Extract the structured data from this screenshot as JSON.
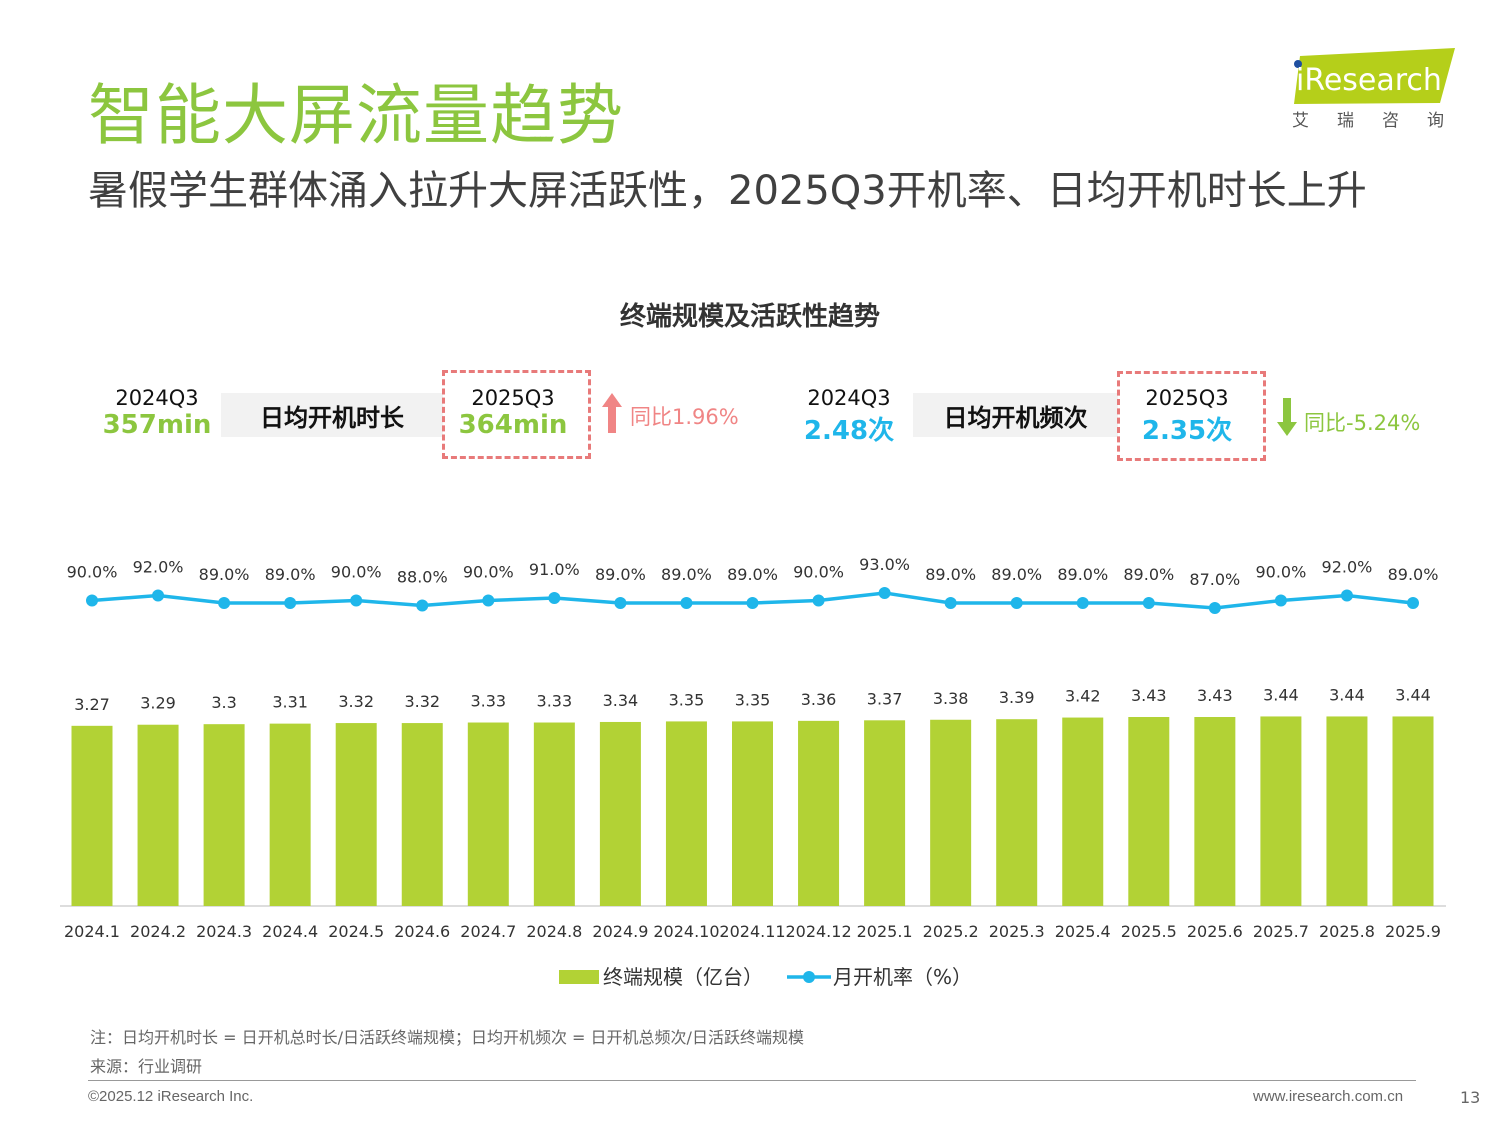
{
  "header": {
    "title": "智能大屏流量趋势",
    "subtitle": "暑假学生群体涌入拉升大屏活跃性，2025Q3开机率、日均开机时长上升",
    "logo_text": "iResearch",
    "logo_cn": "艾 瑞 咨 询"
  },
  "kpis": {
    "duration": {
      "prev_label": "2024Q3",
      "prev_value": "357min",
      "metric": "日均开机时长",
      "curr_label": "2025Q3",
      "curr_value": "364min",
      "change": "同比1.96%",
      "direction": "up"
    },
    "frequency": {
      "prev_label": "2024Q3",
      "prev_value": "2.48次",
      "metric": "日均开机频次",
      "curr_label": "2025Q3",
      "curr_value": "2.35次",
      "change": "同比-5.24%",
      "direction": "down"
    }
  },
  "chart_data": {
    "type": "bar+line",
    "title": "终端规模及活跃性趋势",
    "categories": [
      "2024.1",
      "2024.2",
      "2024.3",
      "2024.4",
      "2024.5",
      "2024.6",
      "2024.7",
      "2024.8",
      "2024.9",
      "2024.10",
      "2024.11",
      "2024.12",
      "2025.1",
      "2025.2",
      "2025.3",
      "2025.4",
      "2025.5",
      "2025.6",
      "2025.7",
      "2025.8",
      "2025.9"
    ],
    "series": [
      {
        "name": "终端规模（亿台）",
        "type": "bar",
        "color": "#b2d235",
        "values": [
          3.27,
          3.29,
          3.3,
          3.31,
          3.32,
          3.32,
          3.33,
          3.33,
          3.34,
          3.35,
          3.35,
          3.36,
          3.37,
          3.38,
          3.39,
          3.42,
          3.43,
          3.43,
          3.44,
          3.44,
          3.44
        ],
        "labels": [
          "3.27",
          "3.29",
          "3.3",
          "3.31",
          "3.32",
          "3.32",
          "3.33",
          "3.33",
          "3.34",
          "3.35",
          "3.35",
          "3.36",
          "3.37",
          "3.38",
          "3.39",
          "3.42",
          "3.43",
          "3.43",
          "3.44",
          "3.44",
          "3.44"
        ]
      },
      {
        "name": "月开机率（%）",
        "type": "line",
        "color": "#1fb6ea",
        "values": [
          90,
          92,
          89,
          89,
          90,
          88,
          90,
          91,
          89,
          89,
          89,
          90,
          93,
          89,
          89,
          89,
          89,
          87,
          90,
          92,
          89
        ],
        "labels": [
          "90.0%",
          "92.0%",
          "89.0%",
          "89.0%",
          "90.0%",
          "88.0%",
          "90.0%",
          "91.0%",
          "89.0%",
          "89.0%",
          "89.0%",
          "90.0%",
          "93.0%",
          "89.0%",
          "89.0%",
          "89.0%",
          "89.0%",
          "87.0%",
          "90.0%",
          "92.0%",
          "89.0%"
        ]
      }
    ],
    "legend_position": "bottom",
    "grid": false
  },
  "footer": {
    "note": "注：日均开机时长 = 日开机总时长/日活跃终端规模；日均开机频次 = 日开机总频次/日活跃终端规模",
    "source": "来源：行业调研",
    "copyright": "©2025.12 iResearch Inc.",
    "website": "www.iresearch.com.cn",
    "page": "13"
  }
}
